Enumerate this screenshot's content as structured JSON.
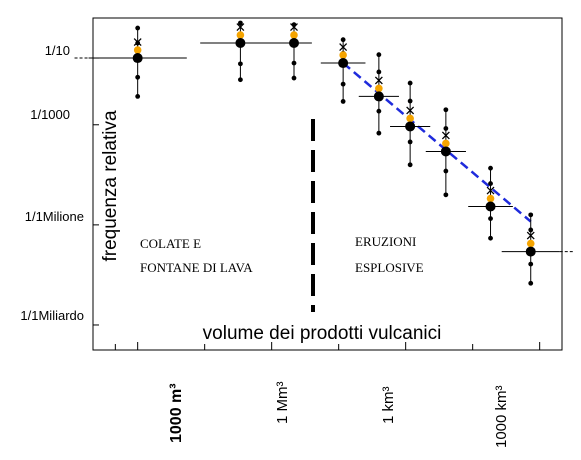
{
  "chart_data": {
    "type": "scatter",
    "xlabel": "volume dei prodotti vulcanici",
    "ylabel": "frequenza relativa",
    "x_tick_labels": [
      "1000 m³",
      "1 Mm³",
      "1 km³",
      "1000 km³"
    ],
    "x_tick_values_m3": [
      1000,
      1000000,
      1000000000,
      1000000000000
    ],
    "y_tick_labels": [
      "1/10",
      "1/1000",
      "1/1Milione",
      "1/1Miliardo"
    ],
    "y_tick_values": [
      0.1,
      0.001,
      1e-06,
      1e-09
    ],
    "y_scale": "log",
    "x_scale": "log",
    "regions": [
      {
        "lines": [
          "COLATE E",
          "FONTANE DI LAVA"
        ]
      },
      {
        "lines": [
          "ERUZIONI",
          "ESPLOSIVE"
        ]
      }
    ],
    "points": [
      {
        "log_volume": 3.0,
        "log_freq": -1.0,
        "err_low": -2.15,
        "err_high": -0.1,
        "half_width": 1.1
      },
      {
        "log_volume": 5.3,
        "log_freq": -0.55,
        "err_low": -1.65,
        "err_high": 0.05,
        "half_width": 0.9
      },
      {
        "log_volume": 6.5,
        "log_freq": -0.55,
        "err_low": -1.6,
        "err_high": 0.0,
        "half_width": 0.4
      },
      {
        "log_volume": 7.6,
        "log_freq": -1.15,
        "err_low": -2.3,
        "err_high": -0.45,
        "half_width": 0.5
      },
      {
        "log_volume": 8.4,
        "log_freq": -2.15,
        "err_low": -3.25,
        "err_high": -0.9,
        "half_width": 0.45
      },
      {
        "log_volume": 9.1,
        "log_freq": -3.05,
        "err_low": -4.2,
        "err_high": -1.75,
        "half_width": 0.45
      },
      {
        "log_volume": 9.9,
        "log_freq": -3.8,
        "err_low": -5.1,
        "err_high": -2.55,
        "half_width": 0.45
      },
      {
        "log_volume": 10.9,
        "log_freq": -5.45,
        "err_low": -6.4,
        "err_high": -4.3,
        "half_width": 0.5
      },
      {
        "log_volume": 11.8,
        "log_freq": -6.8,
        "err_low": -7.75,
        "err_high": -5.7,
        "half_width": 0.65
      }
    ],
    "fit_line": {
      "style": "dashed",
      "color": "#1f2bdc",
      "from": {
        "log_volume": 7.6,
        "log_freq": -1.15
      },
      "to": {
        "log_volume": 11.8,
        "log_freq": -5.9
      }
    },
    "threshold_log_volume": 8.0,
    "x_range_log": [
      2.0,
      12.5
    ],
    "y_range_log": [
      -9.75,
      0.2
    ],
    "grid": false,
    "colors": {
      "main_marker": "#000000",
      "secondary_marker": "#f5a400",
      "fit_line": "#1f2bdc"
    }
  }
}
